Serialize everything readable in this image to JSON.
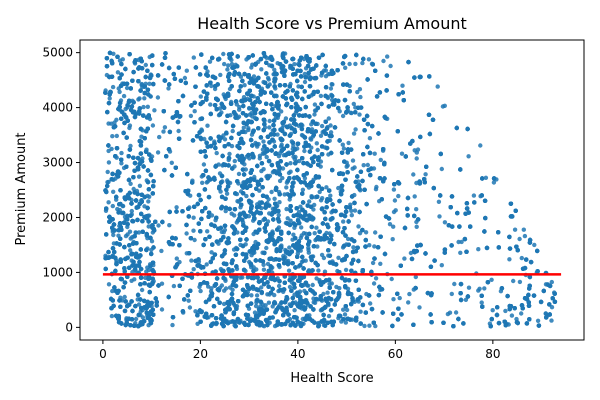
{
  "chart_data": {
    "type": "scatter",
    "title": "Health Score vs Premium Amount",
    "xlabel": "Health Score",
    "ylabel": "Premium Amount",
    "xlim": [
      -4.7,
      98.7
    ],
    "ylim": [
      -230,
      5230
    ],
    "xticks": [
      0,
      20,
      40,
      60,
      80
    ],
    "yticks": [
      0,
      1000,
      2000,
      3000,
      4000,
      5000
    ],
    "grid": false,
    "legend": "none",
    "series": [
      {
        "kind": "points",
        "color": "#1f77b4",
        "point_count_approx": 12000,
        "x_range": [
          0.1,
          93.5
        ],
        "y_range": [
          20,
          4999
        ],
        "description": "dense cloud: x mostly 2–80, y fills 0–5000; upper envelope of y drops as x exceeds ~60, sparse outliers out to x≈93"
      },
      {
        "kind": "trend-line",
        "color": "#ff0000",
        "x": [
          0,
          94
        ],
        "y": [
          965,
          965
        ]
      }
    ]
  }
}
